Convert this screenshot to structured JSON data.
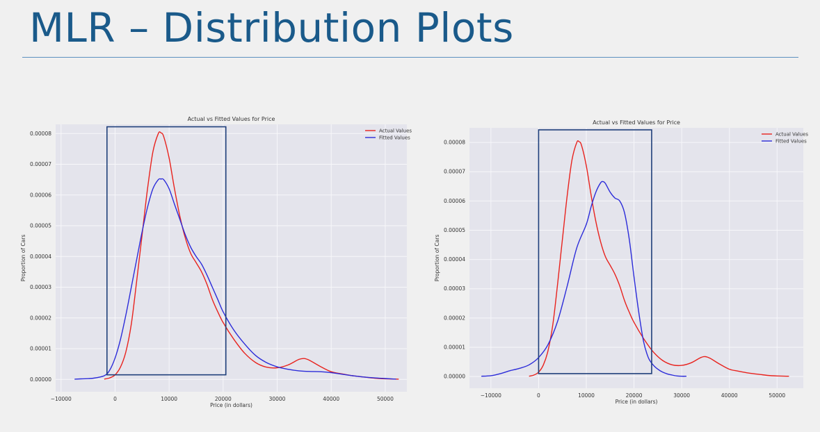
{
  "slide": {
    "title": "MLR – Distribution Plots"
  },
  "colors": {
    "actual": "#e8221d",
    "fitted": "#2b2bd9",
    "highlight": "#1f3f7a",
    "plot_bg": "#e4e4ec",
    "grid": "#f7f7fa"
  },
  "chart_data": [
    {
      "type": "line",
      "title": "Actual vs Fitted Values for Price",
      "xlabel": "Price (in dollars)",
      "ylabel": "Proportion of Cars",
      "xlim": [
        -11000,
        54000
      ],
      "ylim": [
        -4e-06,
        8.3e-05
      ],
      "xticks": [
        -10000,
        0,
        10000,
        20000,
        30000,
        40000,
        50000
      ],
      "yticks": [
        0,
        1e-05,
        2e-05,
        3e-05,
        4e-05,
        5e-05,
        6e-05,
        7e-05,
        8e-05
      ],
      "ytick_labels": [
        "0.00000",
        "0.00001",
        "0.00002",
        "0.00003",
        "0.00004",
        "0.00005",
        "0.00006",
        "0.00007",
        "0.00008"
      ],
      "grid": true,
      "legend": "top-right",
      "highlight_box": {
        "x": [
          -1500,
          20500
        ],
        "y": [
          1.5e-06,
          8.22e-05
        ]
      },
      "series": [
        {
          "name": "Actual Values",
          "color_key": "actual",
          "x": [
            -2000,
            -1000,
            0,
            1000,
            2000,
            3000,
            4000,
            5000,
            6000,
            7000,
            8000,
            8500,
            9000,
            10000,
            11000,
            12000,
            13000,
            14000,
            15000,
            16000,
            17000,
            18000,
            19000,
            20000,
            22000,
            24000,
            26000,
            28000,
            30000,
            32000,
            34000,
            35000,
            36000,
            38000,
            40000,
            42000,
            44000,
            46000,
            48000,
            50000,
            52500
          ],
          "y": [
            1e-07,
            5e-07,
            1.5e-06,
            4e-06,
            9e-06,
            1.8e-05,
            3.2e-05,
            4.7e-05,
            6.2e-05,
            7.4e-05,
            8e-05,
            8.02e-05,
            7.9e-05,
            7.2e-05,
            6.2e-05,
            5.3e-05,
            4.6e-05,
            4.1e-05,
            3.8e-05,
            3.5e-05,
            3.1e-05,
            2.6e-05,
            2.2e-05,
            1.85e-05,
            1.3e-05,
            8.5e-06,
            5.5e-06,
            4e-06,
            3.8e-06,
            4.7e-06,
            6.5e-06,
            6.8e-06,
            6.2e-06,
            4.2e-06,
            2.5e-06,
            1.8e-06,
            1.2e-06,
            8e-07,
            4e-07,
            2e-07,
            1e-07
          ]
        },
        {
          "name": "Fitted Values",
          "color_key": "fitted",
          "x": [
            -7500,
            -6000,
            -4000,
            -2000,
            -1000,
            0,
            1000,
            2000,
            3000,
            4000,
            5000,
            6000,
            7000,
            8000,
            8500,
            9000,
            10000,
            11000,
            12000,
            13000,
            14000,
            15000,
            16000,
            17000,
            18000,
            19000,
            20000,
            22000,
            24000,
            26000,
            28000,
            30000,
            32000,
            34000,
            36000,
            38000,
            40000,
            42000,
            44000,
            46000,
            48000,
            50000,
            52000
          ],
          "y": [
            1e-07,
            2e-07,
            4e-07,
            1.2e-06,
            3e-06,
            7e-06,
            1.3e-05,
            2.1e-05,
            3e-05,
            3.9e-05,
            4.8e-05,
            5.6e-05,
            6.2e-05,
            6.5e-05,
            6.52e-05,
            6.5e-05,
            6.2e-05,
            5.7e-05,
            5.2e-05,
            4.7e-05,
            4.3e-05,
            4e-05,
            3.75e-05,
            3.4e-05,
            3e-05,
            2.6e-05,
            2.2e-05,
            1.6e-05,
            1.15e-05,
            7.8e-06,
            5.5e-06,
            4.1e-06,
            3.3e-06,
            2.8e-06,
            2.6e-06,
            2.5e-06,
            2.2e-06,
            1.7e-06,
            1.2e-06,
            8e-07,
            5e-07,
            3e-07,
            1e-07
          ]
        }
      ]
    },
    {
      "type": "line",
      "title": "Actual vs Fitted Values for Price",
      "xlabel": "Price (in dollars)",
      "ylabel": "Proportion of Cars",
      "xlim": [
        -14500,
        55500
      ],
      "ylim": [
        -4e-06,
        8.5e-05
      ],
      "xticks": [
        -10000,
        0,
        10000,
        20000,
        30000,
        40000,
        50000
      ],
      "yticks": [
        0,
        1e-05,
        2e-05,
        3e-05,
        4e-05,
        5e-05,
        6e-05,
        7e-05,
        8e-05
      ],
      "ytick_labels": [
        "0.00000",
        "0.00001",
        "0.00002",
        "0.00003",
        "0.00004",
        "0.00005",
        "0.00006",
        "0.00007",
        "0.00008"
      ],
      "grid": true,
      "legend": "top-right",
      "highlight_box": {
        "x": [
          0,
          23700
        ],
        "y": [
          1e-06,
          8.43e-05
        ]
      },
      "series": [
        {
          "name": "Actual Values",
          "color_key": "actual",
          "x": [
            -2000,
            -1000,
            0,
            1000,
            2000,
            3000,
            4000,
            5000,
            6000,
            7000,
            8000,
            8500,
            9000,
            10000,
            11000,
            12000,
            13000,
            14000,
            15000,
            16000,
            17000,
            18000,
            19000,
            20000,
            22000,
            24000,
            26000,
            28000,
            30000,
            32000,
            34000,
            35000,
            36000,
            38000,
            40000,
            42000,
            44000,
            46000,
            48000,
            50000,
            52500
          ],
          "y": [
            1e-07,
            5e-07,
            1.5e-06,
            4e-06,
            9e-06,
            1.8e-05,
            3.2e-05,
            4.7e-05,
            6.2e-05,
            7.4e-05,
            8e-05,
            8.02e-05,
            7.9e-05,
            7.2e-05,
            6.2e-05,
            5.3e-05,
            4.6e-05,
            4.1e-05,
            3.8e-05,
            3.5e-05,
            3.1e-05,
            2.6e-05,
            2.2e-05,
            1.85e-05,
            1.3e-05,
            8.5e-06,
            5.5e-06,
            4e-06,
            3.8e-06,
            4.7e-06,
            6.5e-06,
            6.8e-06,
            6.2e-06,
            4.2e-06,
            2.5e-06,
            1.8e-06,
            1.2e-06,
            8e-07,
            4e-07,
            2e-07,
            1e-07
          ]
        },
        {
          "name": "Fitted Values",
          "color_key": "fitted",
          "x": [
            -12000,
            -10000,
            -8000,
            -6000,
            -4000,
            -2000,
            0,
            2000,
            4000,
            6000,
            8000,
            10000,
            11000,
            12000,
            13000,
            13500,
            14000,
            15000,
            16000,
            17000,
            18000,
            19000,
            20000,
            21000,
            22000,
            23000,
            24000,
            25000,
            26000,
            27000,
            28000,
            29000,
            30000,
            31000
          ],
          "y": [
            1e-07,
            3e-07,
            1e-06,
            2e-06,
            2.8e-06,
            4e-06,
            6.5e-06,
            1.1e-05,
            1.9e-05,
            3.1e-05,
            4.4e-05,
            5.2e-05,
            5.8e-05,
            6.3e-05,
            6.62e-05,
            6.66e-05,
            6.6e-05,
            6.3e-05,
            6.1e-05,
            6e-05,
            5.6e-05,
            4.7e-05,
            3.4e-05,
            2.2e-05,
            1.2e-05,
            6.5e-06,
            4e-06,
            2.5e-06,
            1.5e-06,
            9e-07,
            5e-07,
            2e-07,
            1e-07,
            1e-07
          ]
        }
      ]
    }
  ]
}
